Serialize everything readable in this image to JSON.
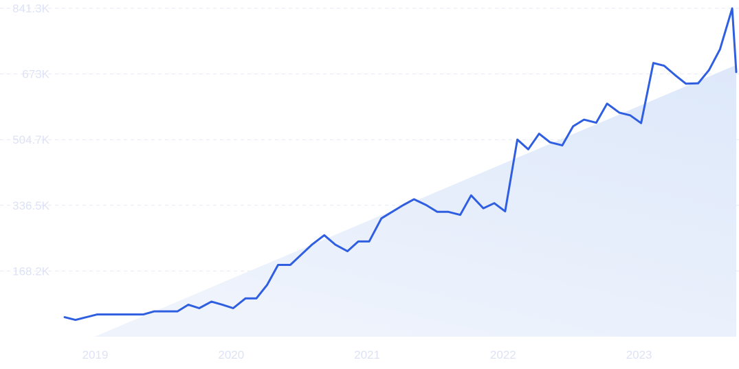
{
  "chart_data": {
    "type": "line",
    "title": "",
    "xlabel": "",
    "ylabel": "",
    "grid": true,
    "ylim": [
      0,
      841300
    ],
    "xlim": [
      2018.78,
      2023.72
    ],
    "y_ticks": [
      {
        "value": 168200,
        "label": "168.2K"
      },
      {
        "value": 336500,
        "label": "336.5K"
      },
      {
        "value": 504700,
        "label": "504.7K"
      },
      {
        "value": 673000,
        "label": "673K"
      },
      {
        "value": 841300,
        "label": "841.3K"
      }
    ],
    "x_ticks": [
      {
        "value": 2019,
        "label": "2019"
      },
      {
        "value": 2020,
        "label": "2020"
      },
      {
        "value": 2021,
        "label": "2021"
      },
      {
        "value": 2022,
        "label": "2022"
      },
      {
        "value": 2023,
        "label": "2023"
      }
    ],
    "trend": {
      "x": [
        2019.0,
        2023.72
      ],
      "y": [
        0,
        696000
      ]
    },
    "series": [
      {
        "color": "#2f5fe0",
        "x": [
          2018.78,
          2018.86,
          2018.94,
          2019.02,
          2019.11,
          2019.19,
          2019.27,
          2019.36,
          2019.44,
          2019.53,
          2019.61,
          2019.69,
          2019.77,
          2019.86,
          2019.94,
          2020.02,
          2020.11,
          2020.19,
          2020.27,
          2020.35,
          2020.44,
          2020.52,
          2020.6,
          2020.69,
          2020.77,
          2020.86,
          2020.94,
          2021.02,
          2021.11,
          2021.19,
          2021.27,
          2021.35,
          2021.44,
          2021.52,
          2021.6,
          2021.69,
          2021.77,
          2021.86,
          2021.94,
          2022.02,
          2022.11,
          2022.19,
          2022.27,
          2022.35,
          2022.44,
          2022.52,
          2022.6,
          2022.69,
          2022.77,
          2022.86,
          2022.94,
          2023.02,
          2023.11,
          2023.19,
          2023.27,
          2023.35,
          2023.44,
          2023.52,
          2023.6,
          2023.69,
          2023.72
        ],
        "y": [
          50000,
          43000,
          50000,
          57000,
          57000,
          57000,
          57000,
          57000,
          65000,
          65000,
          65000,
          82000,
          73000,
          90000,
          82000,
          73000,
          98000,
          98000,
          133000,
          184000,
          184000,
          210000,
          236000,
          260000,
          236000,
          219000,
          244000,
          244000,
          303000,
          320000,
          337000,
          352000,
          337000,
          320000,
          320000,
          312000,
          362000,
          329000,
          342000,
          321000,
          505000,
          480000,
          520000,
          498000,
          490000,
          539000,
          556000,
          548000,
          597000,
          574000,
          567000,
          547000,
          701000,
          694000,
          670000,
          648000,
          649000,
          683000,
          736000,
          841000,
          678000
        ]
      }
    ]
  }
}
